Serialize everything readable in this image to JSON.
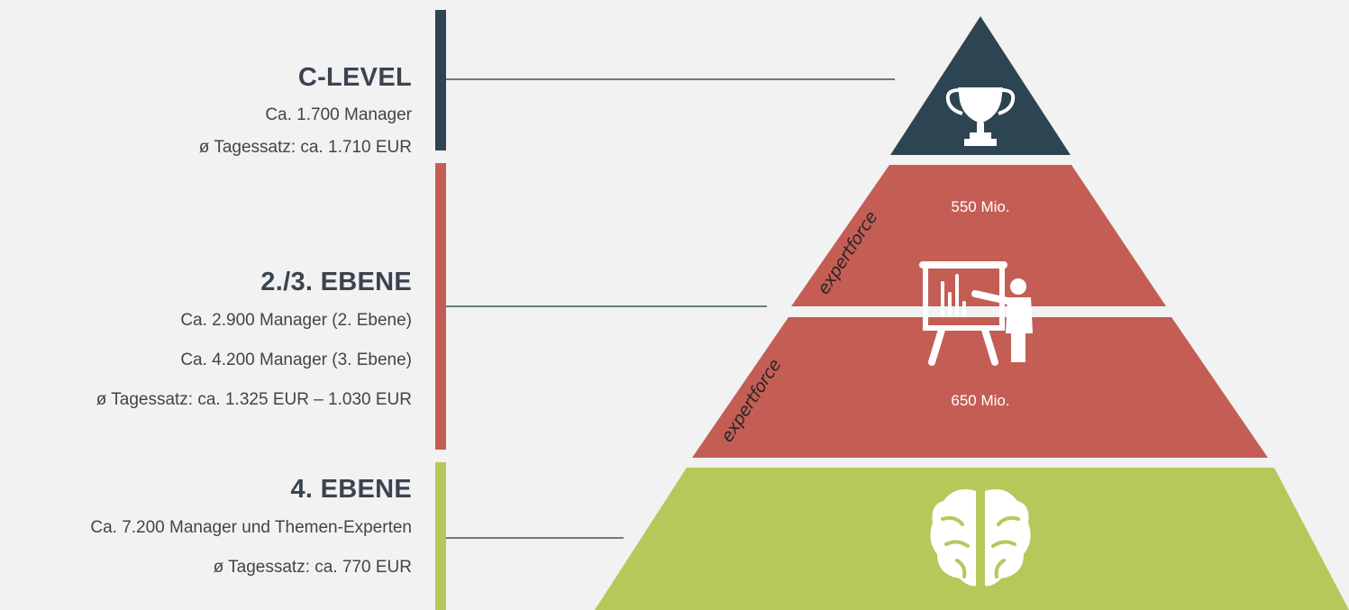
{
  "colors": {
    "top": "#2d4452",
    "middle": "#c45e55",
    "bottom": "#b6c85a",
    "connector": "#3d5563",
    "background": "#f2f2f2"
  },
  "levels": [
    {
      "title": "C-LEVEL",
      "lines": [
        "Ca. 1.700 Manager",
        "ø Tagessatz: ca. 1.710 EUR"
      ],
      "icon": "trophy-icon"
    },
    {
      "title": "2./3. EBENE",
      "lines": [
        "Ca. 2.900 Manager (2. Ebene)",
        "Ca. 4.200 Manager (3. Ebene)",
        "ø Tagessatz: ca. 1.325 EUR – 1.030 EUR"
      ],
      "icon": "presentation-icon"
    },
    {
      "title": "4. EBENE",
      "lines": [
        "Ca. 7.200 Manager und Themen-Experten",
        "ø Tagessatz: ca. 770 EUR"
      ],
      "icon": "brain-icon"
    }
  ],
  "pyramid": {
    "upper_middle_value": "550 Mio.",
    "lower_middle_value": "650 Mio.",
    "watermark": "expertforce"
  }
}
